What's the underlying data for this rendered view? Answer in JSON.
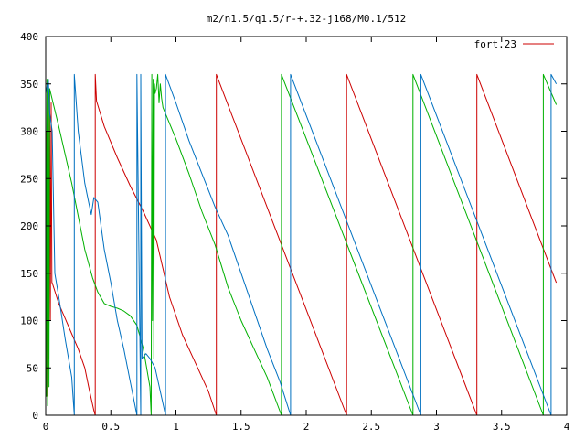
{
  "chart_data": {
    "type": "line",
    "title": "m2/n1.5/q1.5/r-+.32-j168/M0.1/512",
    "xlabel": "",
    "ylabel": "",
    "xlim": [
      0,
      4
    ],
    "ylim": [
      0,
      400
    ],
    "x_ticks": [
      0,
      0.5,
      1,
      1.5,
      2,
      2.5,
      3,
      3.5,
      4
    ],
    "x_tick_labels": [
      "0",
      "0.5",
      "1",
      "1.5",
      "2",
      "2.5",
      "3",
      "3.5",
      "4"
    ],
    "y_ticks": [
      0,
      50,
      100,
      150,
      200,
      250,
      300,
      350,
      400
    ],
    "y_tick_labels": [
      "0",
      "50",
      "100",
      "150",
      "200",
      "250",
      "300",
      "350",
      "400"
    ],
    "grid": false,
    "legend": {
      "position": "top-right",
      "entries": [
        "fort.23"
      ]
    },
    "series": [
      {
        "name": "fort.23",
        "color": "#cc0000",
        "points": [
          [
            0.0,
            80
          ],
          [
            0.006,
            300
          ],
          [
            0.012,
            20
          ],
          [
            0.018,
            350
          ],
          [
            0.024,
            60
          ],
          [
            0.03,
            340
          ],
          [
            0.036,
            100
          ],
          [
            0.042,
            330
          ],
          [
            0.048,
            140
          ],
          [
            0.05,
            140
          ],
          [
            0.1,
            118
          ],
          [
            0.15,
            102
          ],
          [
            0.2,
            86
          ],
          [
            0.25,
            70
          ],
          [
            0.3,
            50
          ],
          [
            0.33,
            30
          ],
          [
            0.37,
            5
          ],
          [
            0.38,
            0
          ],
          [
            0.38,
            360
          ],
          [
            0.39,
            332
          ],
          [
            0.45,
            305
          ],
          [
            0.55,
            272
          ],
          [
            0.65,
            242
          ],
          [
            0.75,
            215
          ],
          [
            0.85,
            185
          ],
          [
            0.95,
            125
          ],
          [
            1.05,
            85
          ],
          [
            1.15,
            55
          ],
          [
            1.25,
            25
          ],
          [
            1.31,
            0
          ],
          [
            1.31,
            360
          ],
          [
            2.31,
            0
          ],
          [
            2.31,
            360
          ],
          [
            3.31,
            0
          ],
          [
            3.31,
            360
          ],
          [
            3.92,
            140
          ]
        ]
      },
      {
        "name": "",
        "color": "#00b000",
        "points": [
          [
            0.0,
            350
          ],
          [
            0.005,
            20
          ],
          [
            0.01,
            355
          ],
          [
            0.015,
            10
          ],
          [
            0.02,
            340
          ],
          [
            0.025,
            30
          ],
          [
            0.03,
            345
          ],
          [
            0.1,
            305
          ],
          [
            0.2,
            245
          ],
          [
            0.3,
            175
          ],
          [
            0.36,
            145
          ],
          [
            0.4,
            130
          ],
          [
            0.45,
            118
          ],
          [
            0.5,
            115
          ],
          [
            0.55,
            113
          ],
          [
            0.6,
            110
          ],
          [
            0.65,
            105
          ],
          [
            0.7,
            95
          ],
          [
            0.75,
            70
          ],
          [
            0.8,
            30
          ],
          [
            0.81,
            0
          ],
          [
            0.815,
            360
          ],
          [
            0.82,
            100
          ],
          [
            0.825,
            355
          ],
          [
            0.83,
            60
          ],
          [
            0.835,
            350
          ],
          [
            0.84,
            340
          ],
          [
            0.85,
            345
          ],
          [
            0.86,
            360
          ],
          [
            0.87,
            330
          ],
          [
            0.88,
            350
          ],
          [
            0.89,
            335
          ],
          [
            0.9,
            325
          ],
          [
            1.0,
            292
          ],
          [
            1.1,
            255
          ],
          [
            1.2,
            215
          ],
          [
            1.3,
            180
          ],
          [
            1.4,
            135
          ],
          [
            1.5,
            100
          ],
          [
            1.6,
            70
          ],
          [
            1.7,
            40
          ],
          [
            1.81,
            0
          ],
          [
            1.81,
            360
          ],
          [
            2.82,
            0
          ],
          [
            2.82,
            360
          ],
          [
            3.82,
            0
          ],
          [
            3.82,
            360
          ],
          [
            3.92,
            328
          ]
        ]
      },
      {
        "name": "",
        "color": "#0070c0",
        "points": [
          [
            0.0,
            340
          ],
          [
            0.02,
            355
          ],
          [
            0.03,
            320
          ],
          [
            0.05,
            300
          ],
          [
            0.07,
            150
          ],
          [
            0.1,
            125
          ],
          [
            0.15,
            80
          ],
          [
            0.2,
            40
          ],
          [
            0.22,
            0
          ],
          [
            0.22,
            360
          ],
          [
            0.25,
            300
          ],
          [
            0.3,
            245
          ],
          [
            0.33,
            225
          ],
          [
            0.35,
            212
          ],
          [
            0.37,
            230
          ],
          [
            0.4,
            225
          ],
          [
            0.45,
            175
          ],
          [
            0.5,
            140
          ],
          [
            0.55,
            100
          ],
          [
            0.6,
            70
          ],
          [
            0.65,
            35
          ],
          [
            0.7,
            0
          ],
          [
            0.7,
            360
          ],
          [
            0.73,
            0
          ],
          [
            0.73,
            360
          ],
          [
            0.74,
            60
          ],
          [
            0.77,
            65
          ],
          [
            0.8,
            60
          ],
          [
            0.84,
            50
          ],
          [
            0.88,
            25
          ],
          [
            0.92,
            0
          ],
          [
            0.92,
            360
          ],
          [
            1.0,
            330
          ],
          [
            1.1,
            290
          ],
          [
            1.2,
            255
          ],
          [
            1.3,
            220
          ],
          [
            1.4,
            190
          ],
          [
            1.5,
            150
          ],
          [
            1.6,
            110
          ],
          [
            1.7,
            70
          ],
          [
            1.8,
            35
          ],
          [
            1.88,
            0
          ],
          [
            1.88,
            360
          ],
          [
            2.88,
            0
          ],
          [
            2.88,
            360
          ],
          [
            3.88,
            0
          ],
          [
            3.88,
            360
          ],
          [
            3.92,
            350
          ]
        ]
      }
    ]
  }
}
